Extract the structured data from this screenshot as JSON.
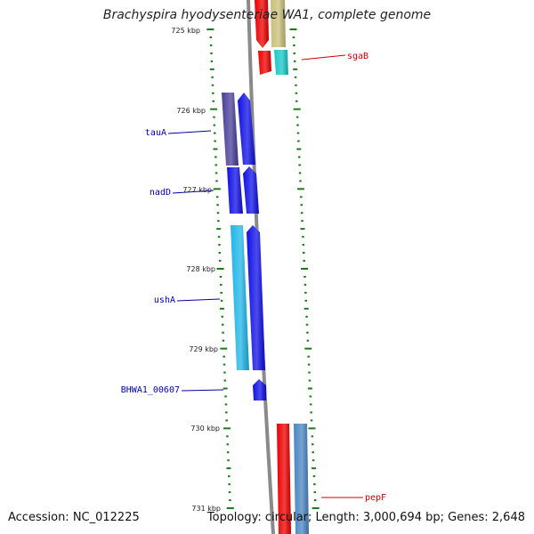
{
  "title": "Brachyspira hyodysenteriae WA1, complete genome",
  "accession": "Accession: NC_012225",
  "summary": "Topology: circular; Length: 3,000,694 bp; Genes: 2,648",
  "ruler": {
    "start_kbp": 725,
    "end_kbp": 731,
    "labels": [
      "725 kbp",
      "726 kbp",
      "727 kbp",
      "728 kbp",
      "729 kbp",
      "730 kbp",
      "731 kbp"
    ],
    "tick_color": "#1a7a1a"
  },
  "genes": [
    {
      "label": "sgaB",
      "label_color": "#cc0000"
    },
    {
      "label": "tauA",
      "label_color": "#0000aa"
    },
    {
      "label": "nadD",
      "label_color": "#0000aa"
    },
    {
      "label": "ushA",
      "label_color": "#0000aa"
    },
    {
      "label": "BHWA1_00607",
      "label_color": "#0000aa"
    },
    {
      "label": "pepF",
      "label_color": "#cc0000"
    }
  ],
  "colors": {
    "red": "#ee0000",
    "olive": "#c8bf7a",
    "cyan": "#17c9c9",
    "blue": "#1010e6",
    "navy": "#4a3f99",
    "skyblue": "#1fb6e8",
    "steelblue": "#4a86c2",
    "backbone": "#8a8a8a"
  }
}
